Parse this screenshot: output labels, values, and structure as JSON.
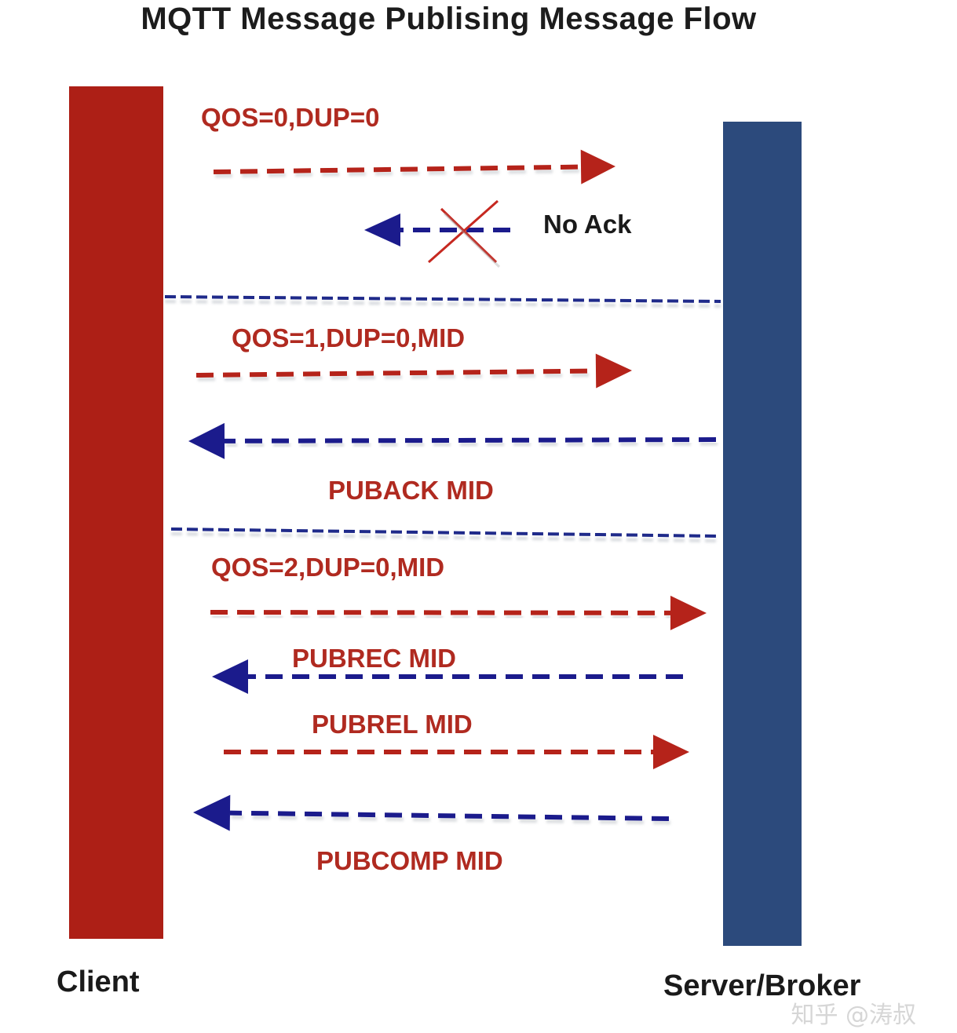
{
  "title": "MQTT Message Publising Message Flow",
  "participants": {
    "client": {
      "label": "Client",
      "color": "#ad1f16"
    },
    "server": {
      "label": "Server/Broker",
      "color": "#2c4a7c"
    }
  },
  "colors": {
    "request_arrow": "#b5231a",
    "response_arrow": "#1b1b8c",
    "separator": "#1f2a8a",
    "cross": "#c62820",
    "message_text": "#b02a20"
  },
  "sections": [
    {
      "label": "QOS=0,DUP=0",
      "messages": [
        {
          "direction": "client-to-server"
        },
        {
          "direction": "server-to-client",
          "label": "No Ack",
          "crossed": true
        }
      ]
    },
    {
      "label": "QOS=1,DUP=0,MID",
      "messages": [
        {
          "direction": "client-to-server"
        },
        {
          "direction": "server-to-client",
          "label": "PUBACK MID"
        }
      ]
    },
    {
      "label": "QOS=2,DUP=0,MID",
      "messages": [
        {
          "direction": "client-to-server"
        },
        {
          "direction": "server-to-client",
          "label": "PUBREC MID"
        },
        {
          "direction": "client-to-server",
          "label": "PUBREL MID"
        },
        {
          "direction": "server-to-client",
          "label": "PUBCOMP MID"
        }
      ]
    }
  ],
  "watermark": "知乎 @涛叔"
}
